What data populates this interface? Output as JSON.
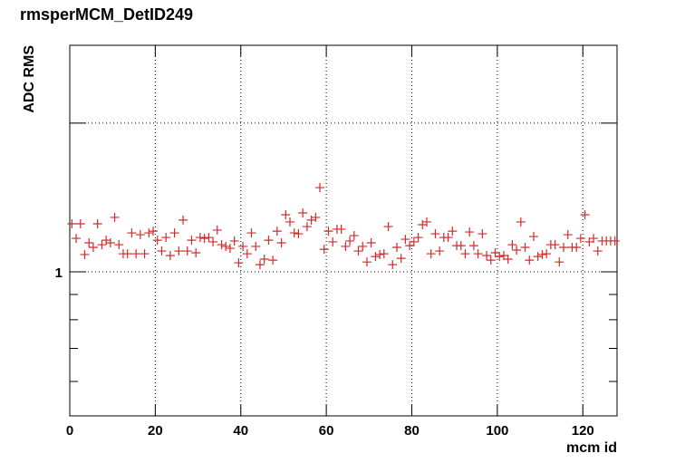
{
  "chart_data": {
    "type": "scatter",
    "title": "rmsperMCM_DetID249",
    "x_label": "mcm id",
    "y_label": "ADC RMS",
    "marker": "+",
    "color": "#d42a2a",
    "logy": true,
    "grid": true,
    "xlim": [
      0,
      128
    ],
    "xticks": [
      0,
      20,
      40,
      60,
      80,
      100,
      120
    ],
    "ylim": [
      0.511,
      2.875
    ],
    "yticks": [
      1
    ],
    "y_unlabeled_major_ticks": [
      2
    ],
    "y_minor_ticks": [
      0.6,
      0.7,
      0.8,
      0.9
    ],
    "x": [
      0.5,
      1.5,
      2.5,
      3.5,
      4.5,
      5.5,
      6.5,
      7.5,
      8.5,
      9.5,
      10.5,
      11.5,
      12.5,
      13.5,
      14.5,
      15.5,
      16.5,
      17.5,
      18.5,
      19.5,
      20.5,
      21.5,
      22.5,
      23.5,
      24.5,
      25.5,
      26.5,
      27.5,
      28.5,
      29.5,
      30.5,
      31.5,
      32.5,
      33.5,
      34.5,
      35.5,
      36.5,
      37.5,
      38.5,
      39.5,
      40.5,
      41.5,
      42.5,
      43.5,
      44.5,
      45.5,
      46.5,
      47.5,
      48.5,
      49.5,
      50.5,
      51.5,
      52.5,
      53.5,
      54.5,
      55.5,
      56.5,
      57.5,
      58.5,
      59.5,
      60.5,
      61.5,
      62.5,
      63.5,
      64.5,
      65.5,
      66.5,
      67.5,
      68.5,
      69.5,
      70.5,
      71.5,
      72.5,
      73.5,
      74.5,
      75.5,
      76.5,
      77.5,
      78.5,
      79.5,
      80.5,
      81.5,
      82.5,
      83.5,
      84.5,
      85.5,
      86.5,
      87.5,
      88.5,
      89.5,
      90.5,
      91.5,
      92.5,
      93.5,
      94.5,
      95.5,
      96.5,
      97.5,
      98.5,
      99.5,
      100.5,
      101.5,
      102.5,
      103.5,
      104.5,
      105.5,
      106.5,
      107.5,
      108.5,
      109.5,
      110.5,
      111.5,
      112.5,
      113.5,
      114.5,
      115.5,
      116.5,
      117.5,
      118.5,
      119.5,
      120.5,
      121.5,
      122.5,
      123.5,
      124.5,
      125.5,
      126.5,
      127.5
    ],
    "values": [
      1.251,
      1.169,
      1.251,
      1.084,
      1.145,
      1.121,
      1.251,
      1.135,
      1.159,
      1.145,
      1.289,
      1.135,
      1.088,
      1.088,
      1.199,
      1.088,
      1.189,
      1.088,
      1.199,
      1.209,
      1.159,
      1.102,
      1.174,
      1.079,
      1.199,
      1.102,
      1.273,
      1.102,
      1.159,
      1.093,
      1.174,
      1.169,
      1.174,
      1.15,
      1.215,
      1.135,
      1.126,
      1.116,
      1.155,
      1.043,
      1.126,
      1.088,
      1.199,
      1.126,
      1.034,
      1.061,
      1.159,
      1.056,
      1.209,
      1.145,
      1.305,
      1.262,
      1.199,
      1.194,
      1.316,
      1.235,
      1.273,
      1.289,
      1.481,
      1.111,
      1.209,
      1.15,
      1.22,
      1.22,
      1.126,
      1.155,
      1.184,
      1.102,
      1.126,
      1.047,
      1.145,
      1.074,
      1.084,
      1.088,
      1.235,
      1.034,
      1.121,
      1.065,
      1.164,
      1.13,
      1.15,
      1.174,
      1.246,
      1.262,
      1.088,
      1.194,
      1.102,
      1.174,
      1.174,
      1.209,
      1.13,
      1.13,
      1.088,
      1.204,
      1.13,
      1.088,
      1.194,
      1.079,
      1.056,
      1.093,
      1.074,
      1.079,
      1.061,
      1.135,
      1.107,
      1.262,
      1.121,
      1.056,
      1.179,
      1.074,
      1.084,
      1.088,
      1.135,
      1.135,
      1.047,
      1.121,
      1.189,
      1.121,
      1.121,
      1.169,
      1.305,
      1.15,
      1.169,
      1.102,
      1.155,
      1.155,
      1.155,
      1.155
    ]
  }
}
